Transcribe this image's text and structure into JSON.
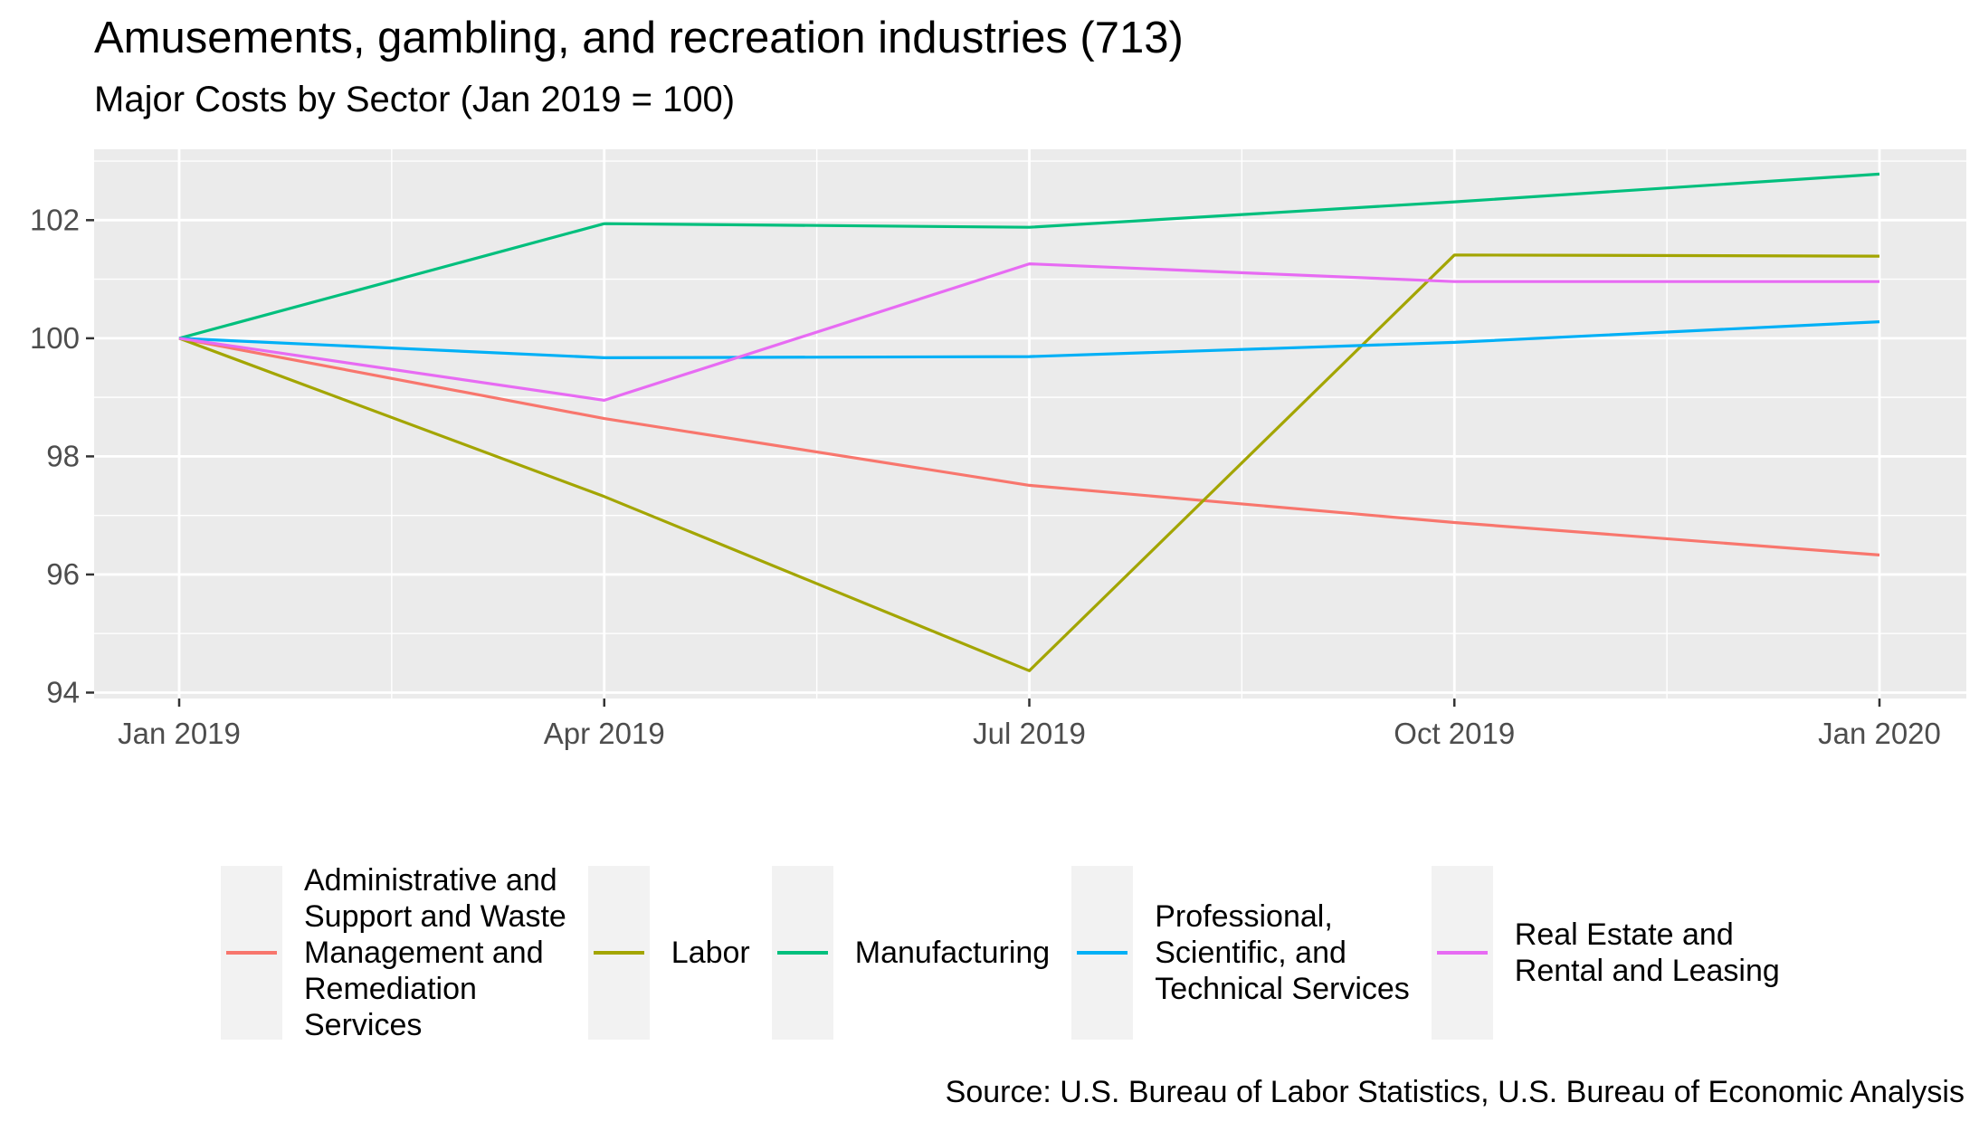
{
  "title": "Amusements, gambling, and recreation industries (713)",
  "subtitle": "Major Costs by Sector (Jan 2019 = 100)",
  "source": "Source: U.S. Bureau of Labor Statistics, U.S. Bureau of Economic Analysis",
  "chart_data": {
    "type": "line",
    "title": "Amusements, gambling, and recreation industries (713)",
    "subtitle": "Major Costs by Sector (Jan 2019 = 100)",
    "x": [
      "Jan 2019",
      "Apr 2019",
      "Jul 2019",
      "Oct 2019",
      "Jan 2020"
    ],
    "xlabel": "",
    "ylabel": "",
    "ylim": [
      93.9,
      103.2
    ],
    "y_ticks": [
      94,
      96,
      98,
      100,
      102
    ],
    "grid": true,
    "legend_position": "bottom",
    "series": [
      {
        "name": "Administrative and Support and Waste Management and Remediation Services",
        "color": "#F8766D",
        "values": [
          100,
          98.64,
          97.51,
          96.88,
          96.33
        ]
      },
      {
        "name": "Labor",
        "color": "#A3A500",
        "values": [
          100,
          97.32,
          94.37,
          101.41,
          101.39
        ]
      },
      {
        "name": "Manufacturing",
        "color": "#00BF7D",
        "values": [
          100,
          101.94,
          101.88,
          102.31,
          102.78
        ]
      },
      {
        "name": "Professional, Scientific, and Technical Services",
        "color": "#00B0F6",
        "values": [
          100,
          99.67,
          99.69,
          99.93,
          100.28
        ]
      },
      {
        "name": "Real Estate and Rental and Leasing",
        "color": "#E76BF3",
        "values": [
          100,
          98.95,
          101.26,
          100.96,
          100.96
        ]
      }
    ]
  },
  "legend": {
    "items": [
      {
        "lines": [
          "Administrative and",
          "Support and Waste",
          "Management and",
          "Remediation",
          "Services"
        ],
        "color": "#F8766D"
      },
      {
        "lines": [
          "Labor"
        ],
        "color": "#A3A500"
      },
      {
        "lines": [
          "Manufacturing"
        ],
        "color": "#00BF7D"
      },
      {
        "lines": [
          "Professional,",
          "Scientific, and",
          "Technical Services"
        ],
        "color": "#00B0F6"
      },
      {
        "lines": [
          "Real Estate and",
          "Rental and Leasing"
        ],
        "color": "#E76BF3"
      }
    ]
  },
  "colors": {
    "panel_background": "#EBEBEB",
    "gridline": "#FFFFFF",
    "tick": "#333333"
  }
}
